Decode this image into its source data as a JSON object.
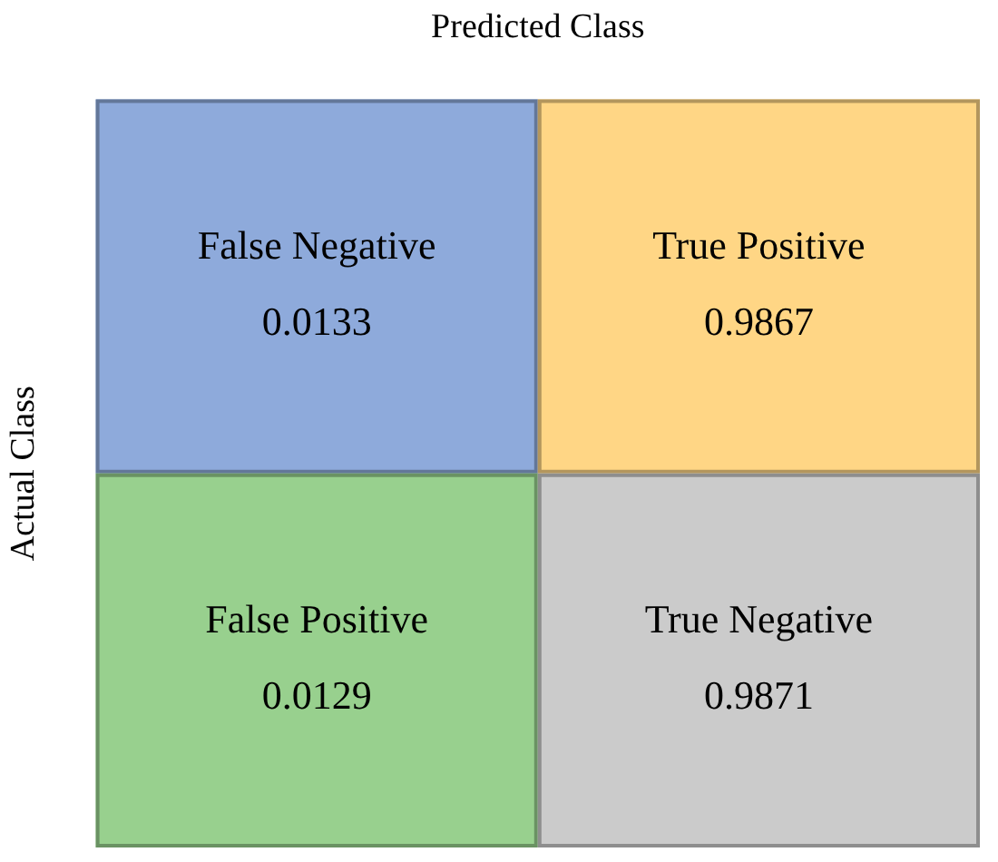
{
  "chart_data": {
    "type": "other",
    "xlabel": "Predicted Class",
    "ylabel": "Actual Class",
    "categories": [
      "False Negative",
      "True Positive",
      "False Positive",
      "True Negative"
    ],
    "values": [
      0.0133,
      0.9867,
      0.0129,
      0.9871
    ],
    "colors": [
      "#8eaadb",
      "#ffd685",
      "#98d08e",
      "#cbcbcb"
    ],
    "data_labels": true
  }
}
